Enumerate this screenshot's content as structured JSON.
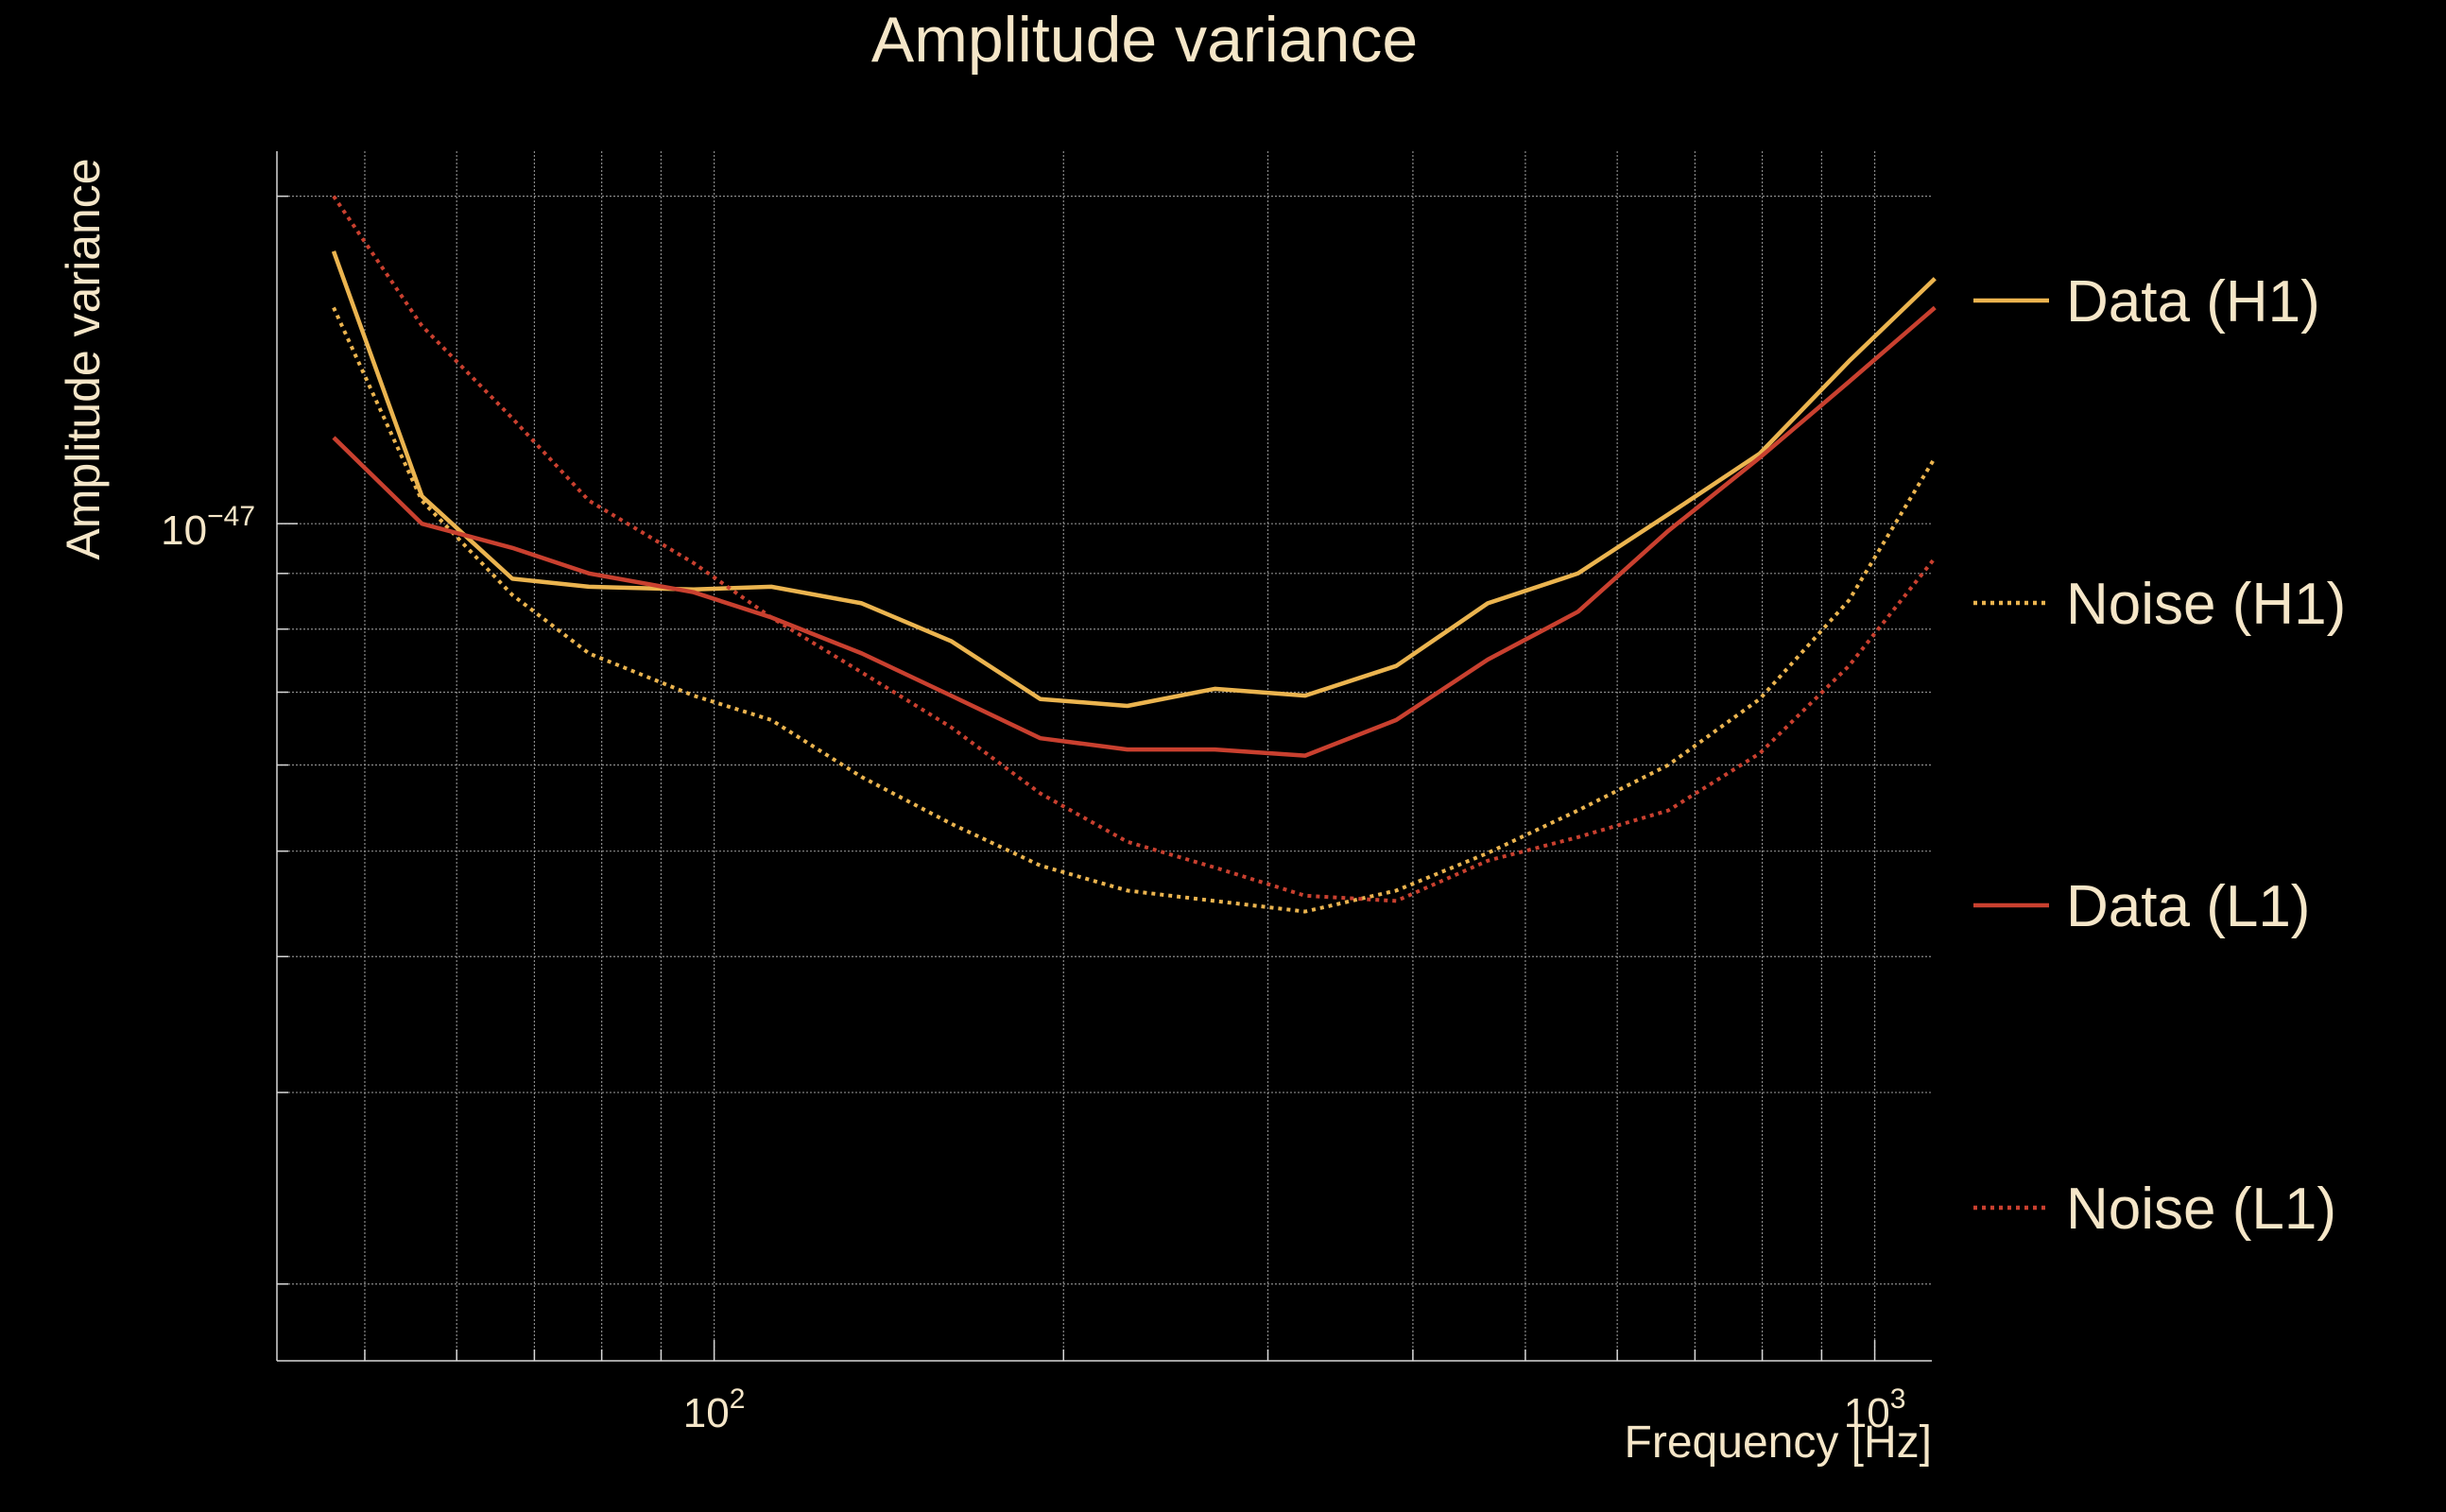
{
  "chart_data": {
    "type": "line",
    "title": "Amplitude variance",
    "xlabel": "Frequency [Hz]",
    "ylabel": "Amplitude variance",
    "xscale": "log",
    "yscale": "log",
    "xlim": [
      42,
      1120
    ],
    "ylim": [
      1.7e-48,
      2.2e-47
    ],
    "grid": true,
    "legend_position": "right",
    "x_ticks": [
      {
        "value": 100,
        "label": "10",
        "exp": "2"
      },
      {
        "value": 1000,
        "label": "10",
        "exp": "3"
      }
    ],
    "y_ticks": [
      {
        "value": 1e-47,
        "label": "10",
        "exp": "−47"
      }
    ],
    "x": [
      47,
      56,
      67,
      78,
      96,
      112,
      134,
      160,
      191,
      227,
      270,
      323,
      387,
      464,
      555,
      664,
      796,
      950,
      1127
    ],
    "series": [
      {
        "name": "Data (H1)",
        "color": "#ebb44f",
        "dash": "solid",
        "values": [
          1.78e-47,
          1.06e-47,
          8.9e-48,
          8.75e-48,
          8.7e-48,
          8.75e-48,
          8.45e-48,
          7.8e-48,
          6.9e-48,
          6.8e-48,
          7.05e-48,
          6.95e-48,
          7.4e-48,
          8.45e-48,
          9e-48,
          1.02e-47,
          1.16e-47,
          1.41e-47,
          1.68e-47
        ]
      },
      {
        "name": "Noise (H1)",
        "color": "#ebb44f",
        "dash": "dotted",
        "values": [
          1.58e-47,
          1.05e-47,
          8.6e-48,
          7.6e-48,
          6.95e-48,
          6.6e-48,
          5.85e-48,
          5.3e-48,
          4.85e-48,
          4.6e-48,
          4.5e-48,
          4.4e-48,
          4.6e-48,
          4.98e-48,
          5.45e-48,
          6e-48,
          6.9e-48,
          8.5e-48,
          1.15e-47
        ]
      },
      {
        "name": "Data (L1)",
        "color": "#c9402f",
        "dash": "solid",
        "values": [
          1.2e-47,
          1e-47,
          9.5e-48,
          9e-48,
          8.65e-48,
          8.2e-48,
          7.6e-48,
          6.95e-48,
          6.35e-48,
          6.2e-48,
          6.2e-48,
          6.12e-48,
          6.6e-48,
          7.5e-48,
          8.3e-48,
          9.85e-48,
          1.15e-47,
          1.35e-47,
          1.58e-47
        ]
      },
      {
        "name": "Noise (L1)",
        "color": "#c9402f",
        "dash": "dotted",
        "values": [
          2e-47,
          1.52e-47,
          1.25e-47,
          1.05e-47,
          9.2e-48,
          8.2e-48,
          7.3e-48,
          6.5e-48,
          5.65e-48,
          5.1e-48,
          4.83e-48,
          4.55e-48,
          4.5e-48,
          4.9e-48,
          5.15e-48,
          5.45e-48,
          6.15e-48,
          7.4e-48,
          9.3e-48
        ]
      }
    ]
  }
}
